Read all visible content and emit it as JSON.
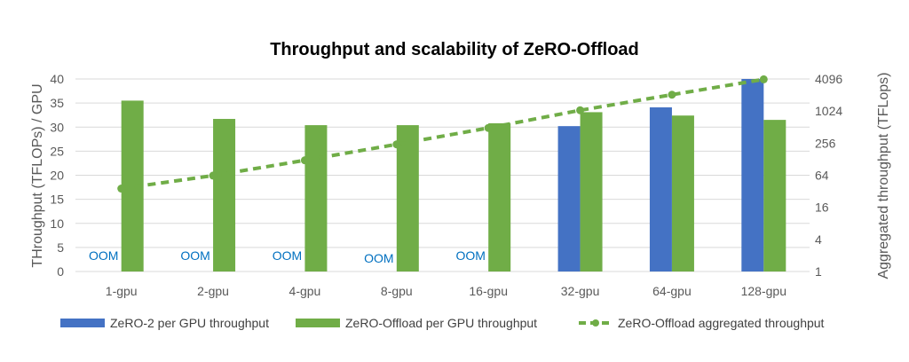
{
  "chart_data": {
    "type": "bar",
    "title": "Throughput and scalability of ZeRO-Offload",
    "ylabel": "THroughput (TFLOPs) / GPU",
    "y2label": "Aggregated throughput (TFLops)",
    "ylim": [
      0,
      40
    ],
    "yticks": [
      "0",
      "5",
      "10",
      "15",
      "20",
      "25",
      "30",
      "35",
      "40"
    ],
    "y2scale": "log2",
    "y2lim": [
      1,
      4096
    ],
    "y2ticks": [
      "1",
      "4",
      "16",
      "64",
      "256",
      "1024",
      "4096"
    ],
    "grid": true,
    "legend": "bottom",
    "categories": [
      "1-gpu",
      "2-gpu",
      "4-gpu",
      "8-gpu",
      "16-gpu",
      "32-gpu",
      "64-gpu",
      "128-gpu"
    ],
    "series": [
      {
        "name": "ZeRO-2 per GPU throughput",
        "type": "bar",
        "color": "#4472C4",
        "values": [
          null,
          null,
          null,
          null,
          null,
          30.2,
          34.1,
          40
        ],
        "labels": [
          "OOM",
          "OOM",
          "OOM",
          "OOM",
          "OOM",
          "",
          "",
          ""
        ]
      },
      {
        "name": "ZeRO-Offload per GPU throughput",
        "type": "bar",
        "color": "#70AD47",
        "values": [
          35.5,
          31.7,
          30.4,
          30.4,
          30.8,
          33.1,
          32.4,
          31.5
        ]
      },
      {
        "name": "ZeRO-Offload aggregated throughput",
        "type": "line",
        "axis": "right",
        "style": "dashed",
        "color": "#70AD47",
        "values": [
          36,
          63,
          122,
          243,
          493,
          1059,
          2074,
          4032
        ]
      }
    ],
    "oom_color": "#0070C0"
  }
}
